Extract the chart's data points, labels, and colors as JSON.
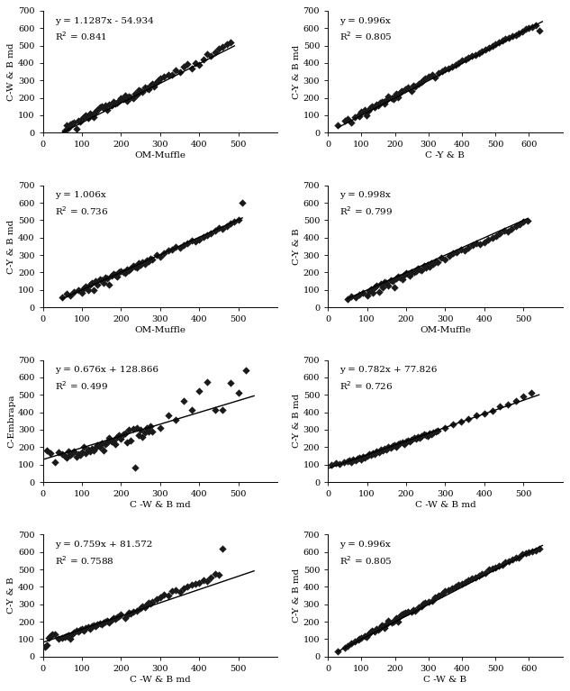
{
  "subplots": [
    {
      "eq": "y = 1.1287x - 54.934",
      "r2": "R$^2$ = 0.841",
      "slope": 1.1287,
      "intercept": -54.934,
      "xlabel": "OM-Muffle",
      "ylabel": "C-W & B md",
      "xlim": [
        0,
        600
      ],
      "ylim": [
        0,
        700
      ],
      "xticks": [
        0,
        100,
        200,
        300,
        400,
        500
      ],
      "yticks": [
        0,
        100,
        200,
        300,
        400,
        500,
        600,
        700
      ],
      "line_x0": 50,
      "line_x1": 490,
      "scatter_x": [
        55,
        60,
        65,
        70,
        75,
        80,
        85,
        90,
        95,
        100,
        105,
        110,
        115,
        120,
        125,
        130,
        135,
        140,
        145,
        150,
        155,
        160,
        165,
        170,
        175,
        180,
        185,
        190,
        195,
        200,
        205,
        210,
        215,
        220,
        225,
        230,
        235,
        240,
        245,
        250,
        255,
        260,
        265,
        270,
        275,
        280,
        285,
        290,
        295,
        300,
        310,
        320,
        330,
        340,
        350,
        360,
        370,
        380,
        390,
        400,
        410,
        420,
        430,
        440,
        450,
        460,
        470,
        480
      ],
      "scatter_y": [
        10,
        45,
        30,
        50,
        55,
        60,
        20,
        70,
        65,
        80,
        90,
        100,
        85,
        110,
        100,
        90,
        120,
        130,
        145,
        150,
        140,
        155,
        130,
        160,
        155,
        180,
        165,
        170,
        185,
        200,
        195,
        215,
        185,
        210,
        205,
        200,
        225,
        220,
        245,
        240,
        235,
        260,
        255,
        250,
        270,
        280,
        265,
        290,
        300,
        310,
        320,
        335,
        330,
        360,
        350,
        380,
        395,
        370,
        400,
        390,
        420,
        450,
        440,
        460,
        480,
        490,
        510,
        520
      ]
    },
    {
      "eq": "y = 0.996x",
      "r2": "R$^2$ = 0.805",
      "slope": 0.996,
      "intercept": 0,
      "xlabel": "C -Y & B",
      "ylabel": "C-Y & B md",
      "xlim": [
        0,
        700
      ],
      "ylim": [
        0,
        700
      ],
      "xticks": [
        0,
        100,
        200,
        300,
        400,
        500,
        600
      ],
      "yticks": [
        0,
        100,
        200,
        300,
        400,
        500,
        600,
        700
      ],
      "line_x0": 30,
      "line_x1": 640,
      "scatter_x": [
        30,
        50,
        60,
        70,
        80,
        90,
        95,
        100,
        110,
        115,
        120,
        125,
        130,
        140,
        145,
        150,
        155,
        160,
        165,
        170,
        175,
        180,
        190,
        195,
        200,
        205,
        210,
        215,
        220,
        230,
        240,
        250,
        255,
        260,
        270,
        280,
        285,
        290,
        300,
        310,
        320,
        330,
        340,
        350,
        360,
        370,
        380,
        390,
        400,
        410,
        420,
        430,
        440,
        450,
        460,
        470,
        480,
        490,
        500,
        510,
        520,
        530,
        540,
        550,
        560,
        570,
        580,
        590,
        600,
        610,
        620,
        630
      ],
      "scatter_y": [
        45,
        70,
        80,
        60,
        90,
        100,
        95,
        120,
        130,
        100,
        125,
        140,
        150,
        145,
        160,
        155,
        170,
        180,
        175,
        165,
        190,
        210,
        200,
        195,
        215,
        225,
        205,
        230,
        240,
        250,
        260,
        240,
        270,
        265,
        280,
        290,
        300,
        310,
        320,
        330,
        315,
        345,
        355,
        365,
        370,
        380,
        390,
        400,
        415,
        420,
        430,
        440,
        445,
        455,
        465,
        475,
        485,
        500,
        510,
        520,
        530,
        540,
        545,
        555,
        560,
        570,
        580,
        595,
        600,
        605,
        615,
        585
      ]
    },
    {
      "eq": "y = 1.006x",
      "r2": "R$^2$ = 0.736",
      "slope": 1.006,
      "intercept": 0,
      "xlabel": "OM-Muffle",
      "ylabel": "C-Y & B md",
      "xlim": [
        0,
        600
      ],
      "ylim": [
        0,
        700
      ],
      "xticks": [
        0,
        100,
        200,
        300,
        400,
        500
      ],
      "yticks": [
        0,
        100,
        200,
        300,
        400,
        500,
        600,
        700
      ],
      "line_x0": 50,
      "line_x1": 510,
      "scatter_x": [
        50,
        60,
        70,
        80,
        90,
        100,
        105,
        110,
        115,
        120,
        125,
        130,
        135,
        140,
        145,
        150,
        155,
        160,
        165,
        170,
        175,
        180,
        185,
        190,
        195,
        200,
        205,
        210,
        215,
        220,
        225,
        230,
        235,
        240,
        245,
        250,
        255,
        260,
        265,
        270,
        275,
        280,
        290,
        300,
        310,
        320,
        330,
        340,
        350,
        360,
        370,
        380,
        390,
        400,
        410,
        420,
        430,
        440,
        450,
        460,
        470,
        480,
        490,
        500,
        510
      ],
      "scatter_y": [
        60,
        80,
        70,
        90,
        100,
        85,
        110,
        120,
        100,
        130,
        140,
        100,
        150,
        130,
        160,
        155,
        140,
        170,
        165,
        130,
        180,
        190,
        185,
        175,
        200,
        210,
        205,
        195,
        220,
        215,
        225,
        240,
        235,
        230,
        255,
        245,
        260,
        250,
        270,
        265,
        280,
        275,
        300,
        290,
        310,
        325,
        330,
        345,
        340,
        355,
        370,
        385,
        380,
        390,
        405,
        415,
        425,
        440,
        455,
        450,
        465,
        480,
        490,
        500,
        600
      ]
    },
    {
      "eq": "y = 0.998x",
      "r2": "R$^2$ = 0.799",
      "slope": 0.998,
      "intercept": 0,
      "xlabel": "OM-Muffle",
      "ylabel": "C-Y & B",
      "xlim": [
        0,
        600
      ],
      "ylim": [
        0,
        700
      ],
      "xticks": [
        0,
        100,
        200,
        300,
        400,
        500
      ],
      "yticks": [
        0,
        100,
        200,
        300,
        400,
        500,
        600,
        700
      ],
      "line_x0": 50,
      "line_x1": 510,
      "scatter_x": [
        50,
        60,
        70,
        80,
        90,
        100,
        105,
        110,
        115,
        120,
        125,
        130,
        135,
        140,
        145,
        150,
        155,
        160,
        165,
        170,
        175,
        180,
        185,
        190,
        195,
        200,
        205,
        210,
        215,
        220,
        225,
        230,
        235,
        240,
        245,
        250,
        255,
        260,
        265,
        270,
        275,
        280,
        290,
        300,
        310,
        320,
        330,
        340,
        350,
        360,
        370,
        380,
        390,
        400,
        410,
        420,
        430,
        440,
        450,
        460,
        470,
        480,
        490,
        500,
        510
      ],
      "scatter_y": [
        50,
        65,
        60,
        75,
        85,
        70,
        95,
        105,
        85,
        115,
        125,
        90,
        135,
        115,
        145,
        140,
        125,
        155,
        150,
        115,
        165,
        175,
        170,
        160,
        185,
        195,
        190,
        180,
        205,
        200,
        210,
        225,
        220,
        215,
        240,
        230,
        245,
        235,
        255,
        250,
        265,
        260,
        285,
        275,
        295,
        310,
        315,
        330,
        325,
        340,
        355,
        370,
        365,
        375,
        390,
        400,
        410,
        425,
        440,
        435,
        450,
        465,
        475,
        490,
        495
      ]
    },
    {
      "eq": "y = 0.676x + 128.866",
      "r2": "R$^2$ = 0.499",
      "slope": 0.676,
      "intercept": 128.866,
      "xlabel": "C -W & B md",
      "ylabel": "C-Embrapa",
      "xlim": [
        0,
        600
      ],
      "ylim": [
        0,
        700
      ],
      "xticks": [
        0,
        100,
        200,
        300,
        400,
        500
      ],
      "yticks": [
        0,
        100,
        200,
        300,
        400,
        500,
        600,
        700
      ],
      "line_x0": 0,
      "line_x1": 540,
      "scatter_x": [
        10,
        20,
        30,
        40,
        50,
        55,
        60,
        65,
        70,
        75,
        80,
        85,
        90,
        95,
        100,
        105,
        110,
        115,
        120,
        125,
        130,
        135,
        140,
        145,
        150,
        155,
        160,
        165,
        170,
        175,
        180,
        185,
        190,
        195,
        200,
        205,
        210,
        215,
        220,
        225,
        230,
        235,
        240,
        245,
        250,
        255,
        260,
        265,
        270,
        275,
        280,
        300,
        320,
        340,
        360,
        380,
        400,
        420,
        440,
        460,
        480,
        500,
        520
      ],
      "scatter_y": [
        180,
        165,
        115,
        170,
        160,
        150,
        140,
        175,
        155,
        165,
        175,
        145,
        160,
        155,
        170,
        200,
        165,
        185,
        175,
        190,
        180,
        195,
        210,
        200,
        220,
        180,
        215,
        225,
        255,
        230,
        240,
        215,
        260,
        270,
        250,
        275,
        280,
        225,
        300,
        240,
        305,
        85,
        310,
        270,
        300,
        260,
        285,
        310,
        290,
        320,
        290,
        310,
        380,
        355,
        465,
        415,
        520,
        575,
        415,
        415,
        570,
        510,
        640
      ]
    },
    {
      "eq": "y = 0.782x + 77.826",
      "r2": "R$^2$ = 0.726",
      "slope": 0.782,
      "intercept": 77.826,
      "xlabel": "C -W & B md",
      "ylabel": "C-Y & B md",
      "xlim": [
        0,
        600
      ],
      "ylim": [
        0,
        700
      ],
      "xticks": [
        0,
        100,
        200,
        300,
        400,
        500
      ],
      "yticks": [
        0,
        100,
        200,
        300,
        400,
        500,
        600,
        700
      ],
      "line_x0": 0,
      "line_x1": 540,
      "scatter_x": [
        10,
        20,
        30,
        40,
        50,
        55,
        60,
        65,
        70,
        75,
        80,
        85,
        90,
        95,
        100,
        105,
        110,
        115,
        120,
        125,
        130,
        135,
        140,
        145,
        150,
        155,
        160,
        165,
        170,
        175,
        180,
        185,
        190,
        195,
        200,
        205,
        210,
        215,
        220,
        225,
        230,
        235,
        240,
        245,
        250,
        255,
        260,
        265,
        270,
        275,
        280,
        300,
        320,
        340,
        360,
        380,
        400,
        420,
        440,
        460,
        480,
        500,
        520
      ],
      "scatter_y": [
        100,
        110,
        105,
        115,
        120,
        125,
        115,
        130,
        125,
        135,
        140,
        130,
        145,
        140,
        150,
        160,
        155,
        165,
        160,
        175,
        170,
        185,
        180,
        190,
        185,
        200,
        195,
        205,
        210,
        200,
        215,
        220,
        225,
        215,
        230,
        240,
        235,
        245,
        255,
        250,
        260,
        255,
        265,
        275,
        270,
        265,
        280,
        275,
        285,
        290,
        295,
        310,
        330,
        345,
        360,
        380,
        395,
        410,
        435,
        445,
        465,
        490,
        510
      ]
    },
    {
      "eq": "y = 0.759x + 81.572",
      "r2": "R$^2$ = 0.7588",
      "slope": 0.759,
      "intercept": 81.572,
      "xlabel": "C -W & B md",
      "ylabel": "C-Y & B",
      "xlim": [
        0,
        600
      ],
      "ylim": [
        0,
        700
      ],
      "xticks": [
        0,
        100,
        200,
        300,
        400,
        500
      ],
      "yticks": [
        0,
        100,
        200,
        300,
        400,
        500,
        600,
        700
      ],
      "line_x0": 0,
      "line_x1": 540,
      "scatter_x": [
        5,
        10,
        15,
        20,
        25,
        30,
        40,
        50,
        55,
        60,
        65,
        70,
        75,
        80,
        85,
        90,
        95,
        100,
        105,
        110,
        115,
        120,
        125,
        130,
        135,
        140,
        145,
        150,
        155,
        160,
        165,
        170,
        175,
        180,
        185,
        190,
        195,
        200,
        210,
        215,
        220,
        225,
        230,
        240,
        250,
        255,
        260,
        265,
        270,
        275,
        280,
        290,
        300,
        310,
        320,
        330,
        340,
        350,
        360,
        370,
        380,
        390,
        400,
        410,
        420,
        430,
        440,
        450,
        460
      ],
      "scatter_y": [
        55,
        65,
        110,
        120,
        130,
        130,
        100,
        110,
        115,
        120,
        125,
        100,
        130,
        140,
        150,
        145,
        155,
        160,
        150,
        165,
        170,
        160,
        175,
        180,
        175,
        185,
        190,
        185,
        195,
        200,
        205,
        195,
        210,
        220,
        215,
        225,
        230,
        240,
        220,
        235,
        250,
        245,
        260,
        265,
        280,
        290,
        285,
        300,
        310,
        305,
        315,
        330,
        340,
        355,
        350,
        375,
        380,
        370,
        390,
        400,
        415,
        420,
        425,
        440,
        435,
        455,
        475,
        470,
        620
      ]
    },
    {
      "eq": "y = 0.996x",
      "r2": "R$^2$ = 0.805",
      "slope": 0.996,
      "intercept": 0,
      "xlabel": "C -W & B",
      "ylabel": "C-Y & B md",
      "xlim": [
        0,
        700
      ],
      "ylim": [
        0,
        700
      ],
      "xticks": [
        0,
        100,
        200,
        300,
        400,
        500,
        600
      ],
      "yticks": [
        0,
        100,
        200,
        300,
        400,
        500,
        600,
        700
      ],
      "line_x0": 30,
      "line_x1": 640,
      "scatter_x": [
        30,
        50,
        60,
        70,
        80,
        90,
        95,
        100,
        110,
        115,
        120,
        125,
        130,
        140,
        145,
        150,
        155,
        160,
        165,
        170,
        175,
        180,
        190,
        195,
        200,
        205,
        210,
        215,
        220,
        225,
        230,
        240,
        250,
        255,
        260,
        270,
        280,
        285,
        290,
        300,
        310,
        320,
        330,
        340,
        350,
        360,
        370,
        380,
        390,
        400,
        410,
        420,
        430,
        440,
        450,
        460,
        470,
        480,
        490,
        500,
        510,
        520,
        530,
        540,
        550,
        560,
        570,
        580,
        590,
        600,
        610,
        620,
        630
      ],
      "scatter_y": [
        30,
        50,
        60,
        75,
        85,
        95,
        105,
        110,
        120,
        115,
        130,
        140,
        150,
        145,
        160,
        155,
        165,
        180,
        175,
        165,
        185,
        205,
        195,
        200,
        210,
        220,
        200,
        230,
        240,
        245,
        250,
        255,
        260,
        270,
        265,
        285,
        290,
        305,
        310,
        315,
        320,
        340,
        350,
        360,
        375,
        380,
        390,
        400,
        415,
        420,
        430,
        440,
        450,
        455,
        465,
        475,
        480,
        500,
        505,
        510,
        520,
        525,
        540,
        545,
        555,
        565,
        570,
        590,
        595,
        600,
        605,
        610,
        620
      ]
    }
  ],
  "marker_color": "#1a1a1a",
  "marker_size": 18,
  "line_color": "#000000",
  "line_width": 1.0,
  "fig_bgcolor": "#ffffff",
  "fontsize_label": 7.5,
  "fontsize_tick": 7,
  "fontsize_eq": 7.5
}
